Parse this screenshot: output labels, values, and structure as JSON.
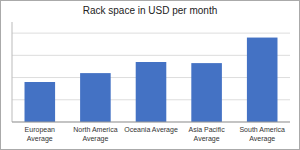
{
  "chart_data": {
    "type": "bar",
    "title": "Rack space in USD per month",
    "categories": [
      "European\nAverage",
      "North America\nAverage",
      "Oceania Average",
      "Asia Pacific\nAverage",
      "South America\nAverage"
    ],
    "values": [
      1.8,
      2.2,
      2.7,
      2.65,
      3.8
    ],
    "color": "#4472C4",
    "ylim": [
      0,
      4.5
    ],
    "yticks": [
      0,
      1,
      2,
      3,
      4
    ],
    "grid": true,
    "tick_labels": "x"
  }
}
